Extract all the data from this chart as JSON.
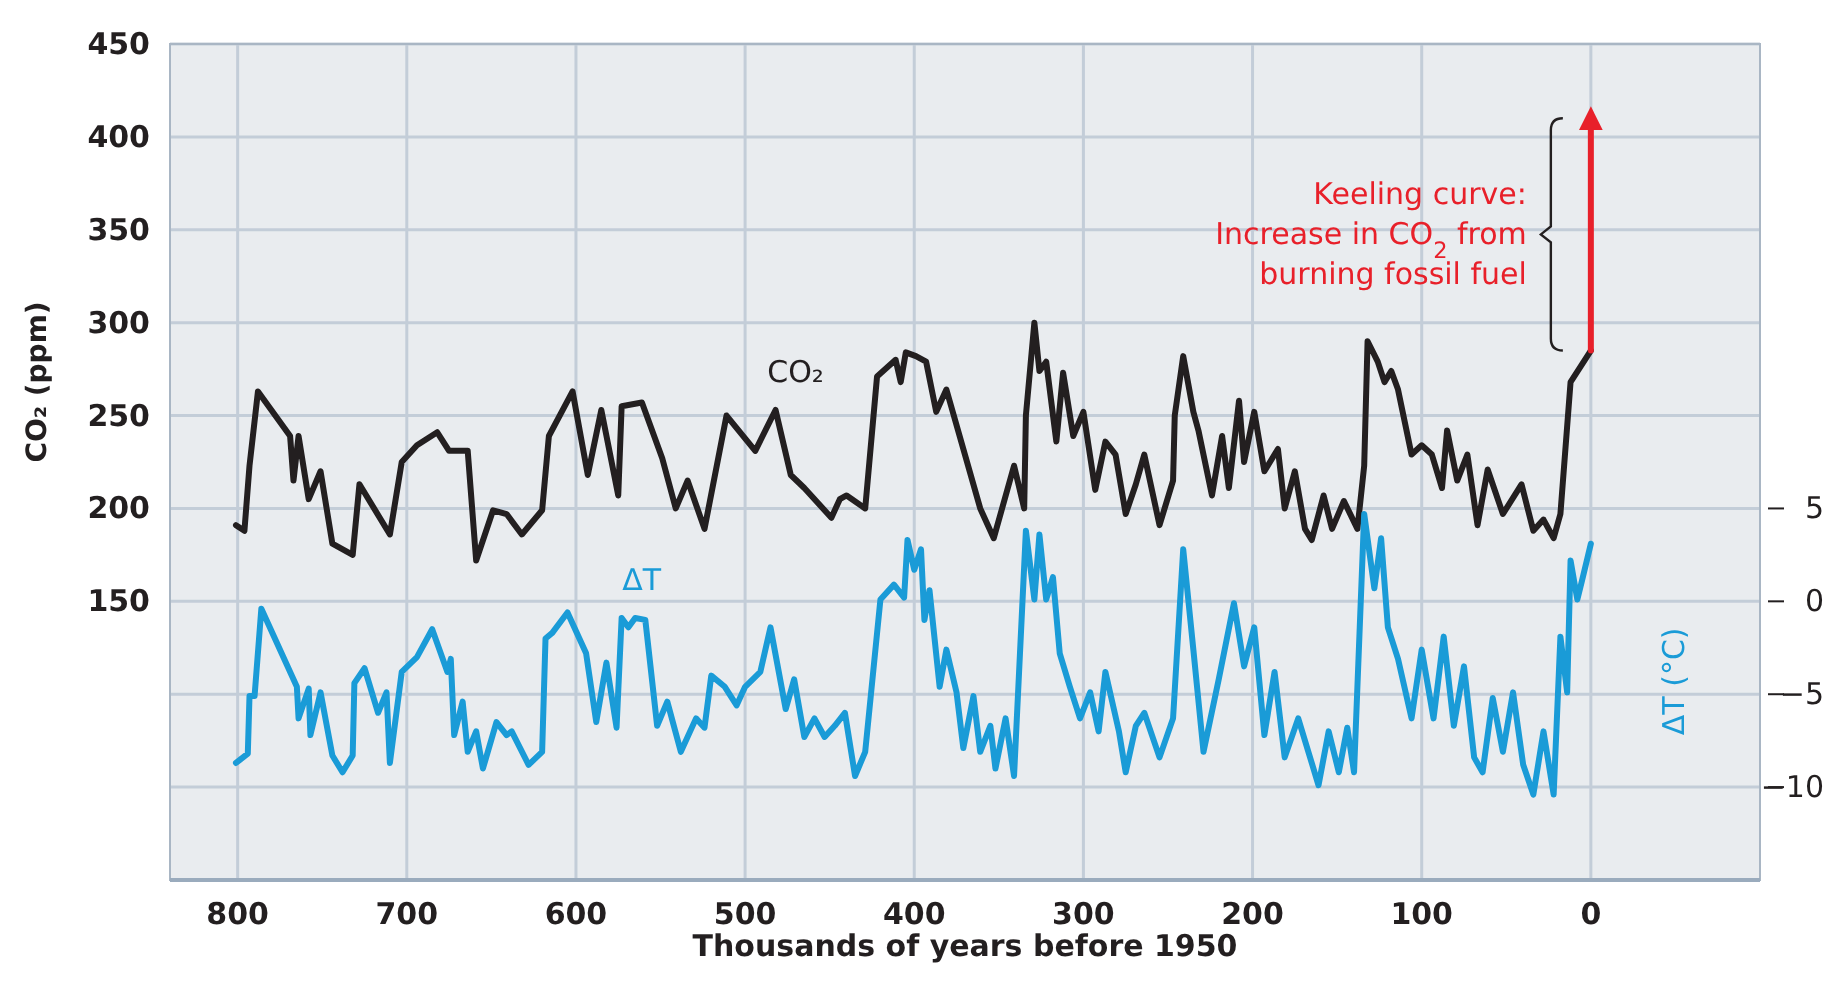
{
  "chart_data": {
    "type": "line",
    "xlabel": "Thousands of years before 1950",
    "ylabel": "CO₂ (ppm)",
    "y2label": "ΔT (°C)",
    "xlim": [
      840,
      -100
    ],
    "xticks": [
      800,
      700,
      600,
      500,
      400,
      300,
      200,
      100,
      0
    ],
    "ylim": [
      0,
      450
    ],
    "yticks": [
      {
        "value": 50,
        "label": null
      },
      {
        "value": 100,
        "label": null
      },
      150,
      200,
      250,
      300,
      350,
      400,
      450
    ],
    "y2lim": [
      -15,
      30
    ],
    "y2ticks": [
      5,
      0,
      {
        "value": -5,
        "label": "−5"
      },
      {
        "value": -10,
        "label": "−10"
      }
    ],
    "grid": true,
    "line_style": "solid",
    "annotations": [
      "Keeling curve:\nIncrease in CO$_{2}$ from\nburning fossil fuel"
    ],
    "series": [
      {
        "name": "CO₂",
        "color": "#231f20",
        "x": [
          801,
          796,
          793,
          788,
          769,
          767,
          764,
          758,
          751,
          744,
          732,
          728,
          710,
          703,
          694,
          682,
          675,
          664,
          659,
          649,
          641,
          632,
          620,
          616,
          602,
          593,
          585,
          575,
          573,
          561,
          549,
          541,
          534,
          524,
          511,
          494,
          482,
          473,
          465,
          449,
          444,
          440,
          429,
          422,
          411,
          408,
          405,
          399,
          393,
          387,
          381,
          361,
          353,
          341,
          335,
          334,
          329,
          326,
          322,
          316,
          312,
          306,
          300,
          293,
          287,
          281,
          275,
          269,
          264,
          255,
          247,
          246,
          241,
          235,
          232,
          224,
          218,
          214,
          208,
          205,
          199,
          193,
          185,
          181,
          175,
          169,
          165,
          158,
          153,
          146,
          138,
          134,
          132,
          126,
          122,
          118,
          114,
          106,
          100,
          94,
          88,
          85,
          79,
          73,
          67,
          61,
          52,
          41,
          34,
          28,
          22,
          18,
          12,
          0
        ],
        "values": [
          191,
          188,
          223,
          263,
          239,
          215,
          239,
          205,
          220,
          181,
          175,
          213,
          186,
          225,
          234,
          241,
          231,
          231,
          172,
          199,
          197,
          186,
          199,
          239,
          263,
          218,
          253,
          207,
          255,
          257,
          227,
          200,
          215,
          189,
          250,
          231,
          253,
          218,
          211,
          195,
          205,
          207,
          200,
          271,
          280,
          268,
          284,
          282,
          279,
          252,
          264,
          200,
          184,
          223,
          200,
          250,
          300,
          274,
          279,
          236,
          273,
          239,
          252,
          210,
          236,
          229,
          197,
          213,
          229,
          191,
          215,
          250,
          282,
          252,
          242,
          207,
          239,
          211,
          258,
          225,
          252,
          220,
          232,
          200,
          220,
          189,
          183,
          207,
          189,
          204,
          189,
          223,
          290,
          279,
          268,
          274,
          264,
          229,
          234,
          229,
          211,
          242,
          215,
          229,
          191,
          221,
          197,
          213,
          188,
          194,
          184,
          197,
          268,
          285
        ]
      },
      {
        "name": "ΔT",
        "color": "#1a9bd7",
        "axis": "y2",
        "x": [
          801,
          794,
          793,
          790,
          786,
          765,
          764,
          758,
          757,
          751,
          744,
          738,
          732,
          731,
          725,
          717,
          712,
          710,
          703,
          694,
          685,
          676,
          674,
          672,
          667,
          664,
          659,
          655,
          647,
          641,
          638,
          628,
          620,
          618,
          614,
          605,
          594,
          588,
          582,
          576,
          573,
          569,
          565,
          559,
          552,
          546,
          538,
          529,
          524,
          520,
          512,
          505,
          500,
          491,
          485,
          476,
          471,
          465,
          459,
          453,
          447,
          441,
          435,
          429,
          420,
          412,
          406,
          404,
          400,
          396,
          394,
          391,
          385,
          381,
          375,
          371,
          365,
          361,
          355,
          352,
          346,
          341,
          334,
          329,
          326,
          322,
          318,
          314,
          308,
          302,
          296,
          291,
          287,
          279,
          275,
          269,
          264,
          255,
          247,
          241,
          235,
          229,
          220,
          211,
          205,
          199,
          193,
          187,
          181,
          173,
          167,
          161,
          155,
          149,
          144,
          140,
          134,
          128,
          124,
          120,
          114,
          106,
          100,
          93,
          87,
          81,
          75,
          69,
          64,
          58,
          52,
          46,
          40,
          34,
          28,
          22,
          18,
          14,
          12,
          8,
          5,
          0
        ],
        "values": [
          -8.7,
          -8.2,
          -5.1,
          -5.1,
          -0.4,
          -4.6,
          -6.3,
          -4.7,
          -7.2,
          -4.9,
          -8.3,
          -9.2,
          -8.3,
          -4.4,
          -3.6,
          -6.0,
          -4.9,
          -8.7,
          -3.8,
          -3.0,
          -1.5,
          -3.8,
          -3.1,
          -7.2,
          -5.4,
          -8.1,
          -7.0,
          -9.0,
          -6.5,
          -7.2,
          -7.0,
          -8.8,
          -8.1,
          -2.0,
          -1.7,
          -0.6,
          -2.8,
          -6.5,
          -3.3,
          -6.8,
          -0.9,
          -1.4,
          -0.9,
          -1.0,
          -6.7,
          -5.4,
          -8.1,
          -6.3,
          -6.8,
          -4.0,
          -4.6,
          -5.6,
          -4.6,
          -3.8,
          -1.4,
          -5.8,
          -4.2,
          -7.3,
          -6.3,
          -7.3,
          -6.7,
          -6.0,
          -9.4,
          -8.1,
          0.1,
          0.9,
          0.2,
          3.3,
          1.7,
          2.8,
          -1.0,
          0.6,
          -4.6,
          -2.6,
          -4.9,
          -7.9,
          -5.1,
          -8.1,
          -6.7,
          -9.0,
          -6.3,
          -9.4,
          3.8,
          0.1,
          3.6,
          0.1,
          1.3,
          -2.8,
          -4.6,
          -6.3,
          -4.9,
          -7.0,
          -3.8,
          -7.0,
          -9.2,
          -6.7,
          -6.0,
          -8.4,
          -6.3,
          2.8,
          -2.6,
          -8.1,
          -4.2,
          -0.1,
          -3.5,
          -1.4,
          -7.2,
          -3.8,
          -8.4,
          -6.3,
          -8.1,
          -9.9,
          -7.0,
          -9.2,
          -6.8,
          -9.2,
          4.7,
          0.7,
          3.4,
          -1.4,
          -3.1,
          -6.3,
          -2.6,
          -6.3,
          -1.9,
          -6.7,
          -3.5,
          -8.4,
          -9.2,
          -5.2,
          -8.1,
          -4.9,
          -8.8,
          -10.4,
          -7.0,
          -10.4,
          -1.9,
          -4.9,
          2.2,
          0.1,
          1.2,
          3.1
        ]
      },
      {
        "color": "#e8202a",
        "x": [
          0,
          0
        ],
        "values": [
          285,
          410
        ]
      }
    ]
  }
}
